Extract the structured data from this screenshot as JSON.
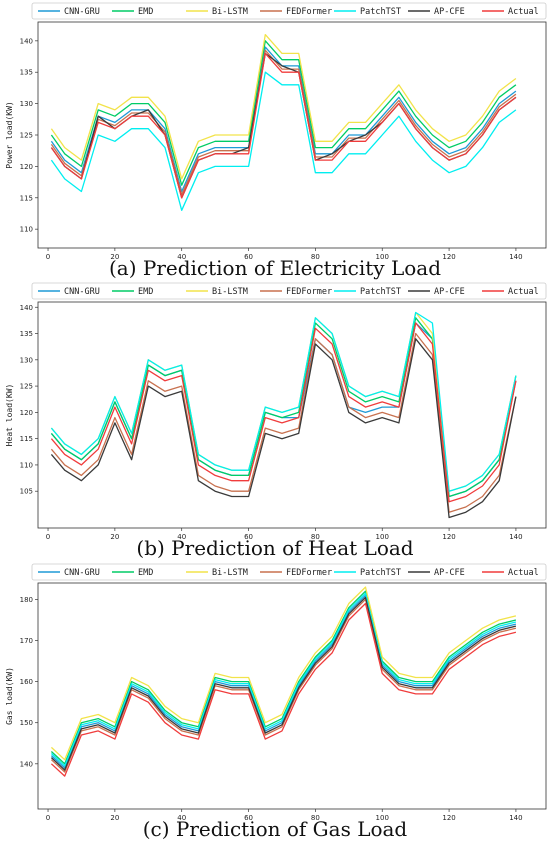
{
  "chart_data": [
    {
      "type": "line",
      "ylabel": "Power load(KW)",
      "caption": "(a) Prediction of Electricity Load",
      "x": [
        1,
        5,
        10,
        15,
        20,
        25,
        30,
        35,
        40,
        45,
        50,
        55,
        60,
        65,
        70,
        75,
        80,
        85,
        90,
        95,
        100,
        105,
        110,
        115,
        120,
        125,
        130,
        135,
        140
      ],
      "xlim": [
        -3,
        149
      ],
      "xticks": [
        0,
        20,
        40,
        60,
        80,
        100,
        120,
        140
      ],
      "ylim": [
        107,
        143
      ],
      "yticks": [
        110,
        115,
        120,
        125,
        130,
        135,
        140
      ],
      "series": [
        {
          "name": "CNN-GRU",
          "color": "#1f9ad6",
          "values": [
            124,
            121,
            119,
            128,
            127,
            129,
            129,
            126,
            116,
            122,
            123,
            123,
            123,
            139,
            136,
            136,
            122,
            122,
            125,
            125,
            128,
            131,
            127,
            124,
            122,
            123,
            126,
            130,
            132
          ]
        },
        {
          "name": "EMD",
          "color": "#00cc66",
          "values": [
            125,
            122,
            120,
            129,
            128,
            130,
            130,
            127,
            117,
            123,
            124,
            124,
            124,
            140,
            137,
            137,
            123,
            123,
            126,
            126,
            129,
            132,
            128,
            125,
            123,
            124,
            127,
            131,
            133
          ]
        },
        {
          "name": "Bi-LSTM",
          "color": "#f2e34a",
          "values": [
            126,
            123,
            121,
            130,
            129,
            131,
            131,
            128,
            118,
            124,
            125,
            125,
            125,
            141,
            138,
            138,
            124,
            124,
            127,
            127,
            130,
            133,
            129,
            126,
            124,
            125,
            128,
            132,
            134
          ]
        },
        {
          "name": "FEDFormer",
          "color": "#c8714f",
          "values": [
            123.5,
            120.5,
            118.5,
            127.5,
            126.5,
            128.5,
            128.5,
            125.5,
            115.5,
            121.5,
            122.5,
            122.5,
            122.5,
            138.5,
            135.5,
            135.5,
            121.5,
            121.5,
            124.5,
            124.5,
            127.5,
            130.5,
            126.5,
            123.5,
            121.5,
            122.5,
            125.5,
            129.5,
            131.5
          ]
        },
        {
          "name": "PatchTST",
          "color": "#00eef0",
          "values": [
            121,
            118,
            116,
            125,
            124,
            126,
            126,
            123,
            113,
            119,
            120,
            120,
            120,
            135,
            133,
            133,
            119,
            119,
            122,
            122,
            125,
            128,
            124,
            121,
            119,
            120,
            123,
            127,
            129
          ]
        },
        {
          "name": "AP-CFE",
          "color": "#3a3a3a",
          "values": [
            123,
            120,
            118,
            128,
            126,
            128,
            129,
            125,
            115,
            121,
            122,
            122,
            123,
            138,
            136,
            135,
            121,
            122,
            124,
            125,
            127,
            130,
            126,
            123,
            121,
            122,
            125,
            129,
            131
          ]
        },
        {
          "name": "Actual",
          "color": "#f03c3c",
          "values": [
            123,
            120,
            118,
            127,
            126,
            128,
            128,
            125,
            115,
            121,
            122,
            122,
            122,
            138,
            135,
            135,
            121,
            121,
            124,
            124,
            127,
            130,
            126,
            123,
            121,
            122,
            125,
            129,
            131
          ]
        }
      ]
    },
    {
      "type": "line",
      "ylabel": "Heat load(KW)",
      "caption": "(b) Prediction of Heat Load",
      "x": [
        1,
        5,
        10,
        15,
        20,
        25,
        30,
        35,
        40,
        45,
        50,
        55,
        60,
        65,
        70,
        75,
        80,
        85,
        90,
        95,
        100,
        105,
        110,
        115,
        120,
        125,
        130,
        135,
        140
      ],
      "xlim": [
        -3,
        149
      ],
      "xticks": [
        0,
        20,
        40,
        60,
        80,
        100,
        120,
        140
      ],
      "ylim": [
        98,
        141
      ],
      "yticks": [
        105,
        110,
        115,
        120,
        125,
        130,
        135,
        140
      ],
      "series": [
        {
          "name": "CNN-GRU",
          "color": "#1f9ad6",
          "values": [
            116,
            113,
            111,
            114,
            122,
            115,
            129,
            127,
            128,
            111,
            109,
            108,
            108,
            120,
            119,
            119,
            134,
            131,
            121,
            120,
            121,
            121,
            137,
            134,
            104,
            105,
            107,
            111,
            126
          ]
        },
        {
          "name": "EMD",
          "color": "#00cc66",
          "values": [
            116,
            113,
            111,
            114,
            122,
            115,
            129,
            127,
            128,
            111,
            109,
            108,
            108,
            120,
            119,
            120,
            137,
            134,
            124,
            122,
            123,
            122,
            138,
            134,
            104,
            105,
            107,
            111,
            127
          ]
        },
        {
          "name": "Bi-LSTM",
          "color": "#f2e34a",
          "values": [
            117,
            114,
            112,
            115,
            123,
            116,
            130,
            128,
            129,
            112,
            110,
            109,
            109,
            121,
            120,
            121,
            138,
            135,
            125,
            123,
            124,
            123,
            139,
            135,
            105,
            106,
            108,
            112,
            127
          ]
        },
        {
          "name": "FEDFormer",
          "color": "#c8714f",
          "values": [
            113,
            110,
            108,
            111,
            119,
            112,
            126,
            124,
            125,
            108,
            106,
            105,
            105,
            117,
            116,
            117,
            134,
            131,
            121,
            119,
            120,
            119,
            135,
            131,
            101,
            102,
            104,
            108,
            123
          ]
        },
        {
          "name": "PatchTST",
          "color": "#00eef0",
          "values": [
            117,
            114,
            112,
            115,
            123,
            116,
            130,
            128,
            129,
            112,
            110,
            109,
            109,
            121,
            120,
            121,
            138,
            135,
            125,
            123,
            124,
            123,
            139,
            137,
            105,
            106,
            108,
            112,
            127
          ]
        },
        {
          "name": "AP-CFE",
          "color": "#3a3a3a",
          "values": [
            112,
            109,
            107,
            110,
            118,
            111,
            125,
            123,
            124,
            107,
            105,
            104,
            104,
            116,
            115,
            116,
            133,
            130,
            120,
            118,
            119,
            118,
            134,
            130,
            100,
            101,
            103,
            107,
            123
          ]
        },
        {
          "name": "Actual",
          "color": "#f03c3c",
          "values": [
            115,
            112,
            110,
            113,
            121,
            114,
            128,
            126,
            127,
            110,
            108,
            107,
            107,
            119,
            118,
            119,
            136,
            133,
            123,
            121,
            122,
            121,
            137,
            133,
            103,
            104,
            106,
            110,
            126
          ]
        }
      ]
    },
    {
      "type": "line",
      "ylabel": "Gas load(KW)",
      "caption": "(c) Prediction of Gas Load",
      "x": [
        1,
        5,
        10,
        15,
        20,
        25,
        30,
        35,
        40,
        45,
        50,
        55,
        60,
        65,
        70,
        75,
        80,
        85,
        90,
        95,
        100,
        105,
        110,
        115,
        120,
        125,
        130,
        135,
        140
      ],
      "xlim": [
        -3,
        149
      ],
      "xticks": [
        0,
        20,
        40,
        60,
        80,
        100,
        120,
        140
      ],
      "ylim": [
        129,
        184
      ],
      "yticks": [
        140,
        150,
        160,
        170,
        180
      ],
      "series": [
        {
          "name": "CNN-GRU",
          "color": "#1f9ad6",
          "values": [
            142,
            139,
            149,
            150,
            148,
            159,
            157,
            152,
            149,
            148,
            160,
            159,
            159,
            148,
            150,
            159,
            165,
            169,
            177,
            181,
            164,
            160,
            159,
            159,
            165,
            168,
            171,
            173,
            174
          ]
        },
        {
          "name": "EMD",
          "color": "#00cc66",
          "values": [
            143,
            140,
            150,
            151,
            149,
            160,
            158,
            153,
            150,
            149,
            161,
            160,
            160,
            149,
            151,
            160,
            166,
            170,
            178,
            182,
            165,
            161,
            160,
            160,
            166,
            169,
            172,
            174,
            175
          ]
        },
        {
          "name": "Bi-LSTM",
          "color": "#f2e34a",
          "values": [
            144,
            141,
            151,
            152,
            150,
            161,
            159,
            154,
            151,
            150,
            162,
            161,
            161,
            150,
            152,
            161,
            167,
            171,
            179,
            183,
            166,
            162,
            161,
            161,
            167,
            170,
            173,
            175,
            176
          ]
        },
        {
          "name": "FEDFormer",
          "color": "#c8714f",
          "values": [
            141,
            138,
            148,
            149,
            147,
            158,
            156,
            151,
            148,
            147,
            159,
            158,
            158,
            147,
            149,
            158,
            164,
            168,
            176,
            180,
            163,
            159,
            158,
            158,
            164,
            167,
            170,
            172,
            173
          ]
        },
        {
          "name": "PatchTST",
          "color": "#00eef0",
          "values": [
            142.5,
            139.5,
            149.5,
            150.5,
            148.5,
            159.5,
            157.5,
            152.5,
            149.5,
            148.5,
            160.5,
            159.5,
            159.5,
            148.5,
            150.5,
            159.5,
            165.5,
            169.5,
            177.5,
            181.5,
            164.5,
            160.5,
            159.5,
            159.5,
            165.5,
            168.5,
            171.5,
            173.5,
            174.5
          ]
        },
        {
          "name": "AP-CFE",
          "color": "#3a3a3a",
          "values": [
            141.5,
            138.5,
            148.5,
            149.5,
            147.5,
            158.5,
            156.5,
            151.5,
            148.5,
            147.5,
            159.5,
            158.5,
            158.5,
            147.5,
            149.5,
            158.5,
            164.5,
            168.5,
            176.5,
            180.5,
            163.5,
            159.5,
            158.5,
            158.5,
            164.5,
            167.5,
            170.5,
            172.5,
            173.5
          ]
        },
        {
          "name": "Actual",
          "color": "#f03c3c",
          "values": [
            140,
            137,
            147,
            148,
            146,
            157,
            155,
            150,
            147,
            146,
            158,
            157,
            157,
            146,
            148,
            157,
            163,
            167,
            175,
            179,
            162,
            158,
            157,
            157,
            163,
            166,
            169,
            171,
            172
          ]
        }
      ]
    }
  ]
}
